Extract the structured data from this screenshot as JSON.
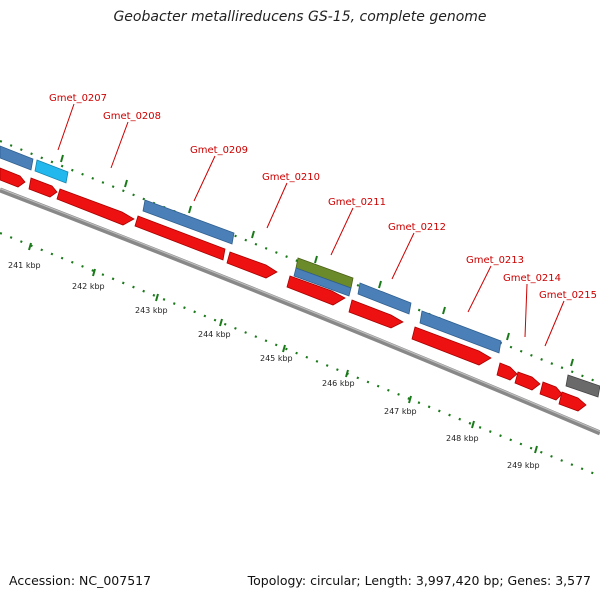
{
  "title": "Geobacter metallireducens GS-15, complete genome",
  "footer": {
    "accession": "Accession: NC_007517",
    "summary": "Topology: circular; Length: 3,997,420 bp; Genes: 3,577"
  },
  "colors": {
    "cds": "#ee1111",
    "gene_blue": "#4a7fb8",
    "gene_cyan": "#22b8ee",
    "gene_olive": "#6b8a2a",
    "gene_gray": "#6a6a6a",
    "backbone": "#888888",
    "tick": "#1a7a1a",
    "label": "#cc0000"
  },
  "gene_labels": [
    "Gmet_0207",
    "Gmet_0208",
    "Gmet_0209",
    "Gmet_0210",
    "Gmet_0211",
    "Gmet_0212",
    "Gmet_0213",
    "Gmet_0214",
    "Gmet_0215"
  ],
  "kbp_labels": [
    "241 kbp",
    "242 kbp",
    "243 kbp",
    "244 kbp",
    "245 kbp",
    "246 kbp",
    "247 kbp",
    "248 kbp",
    "249 kbp"
  ]
}
